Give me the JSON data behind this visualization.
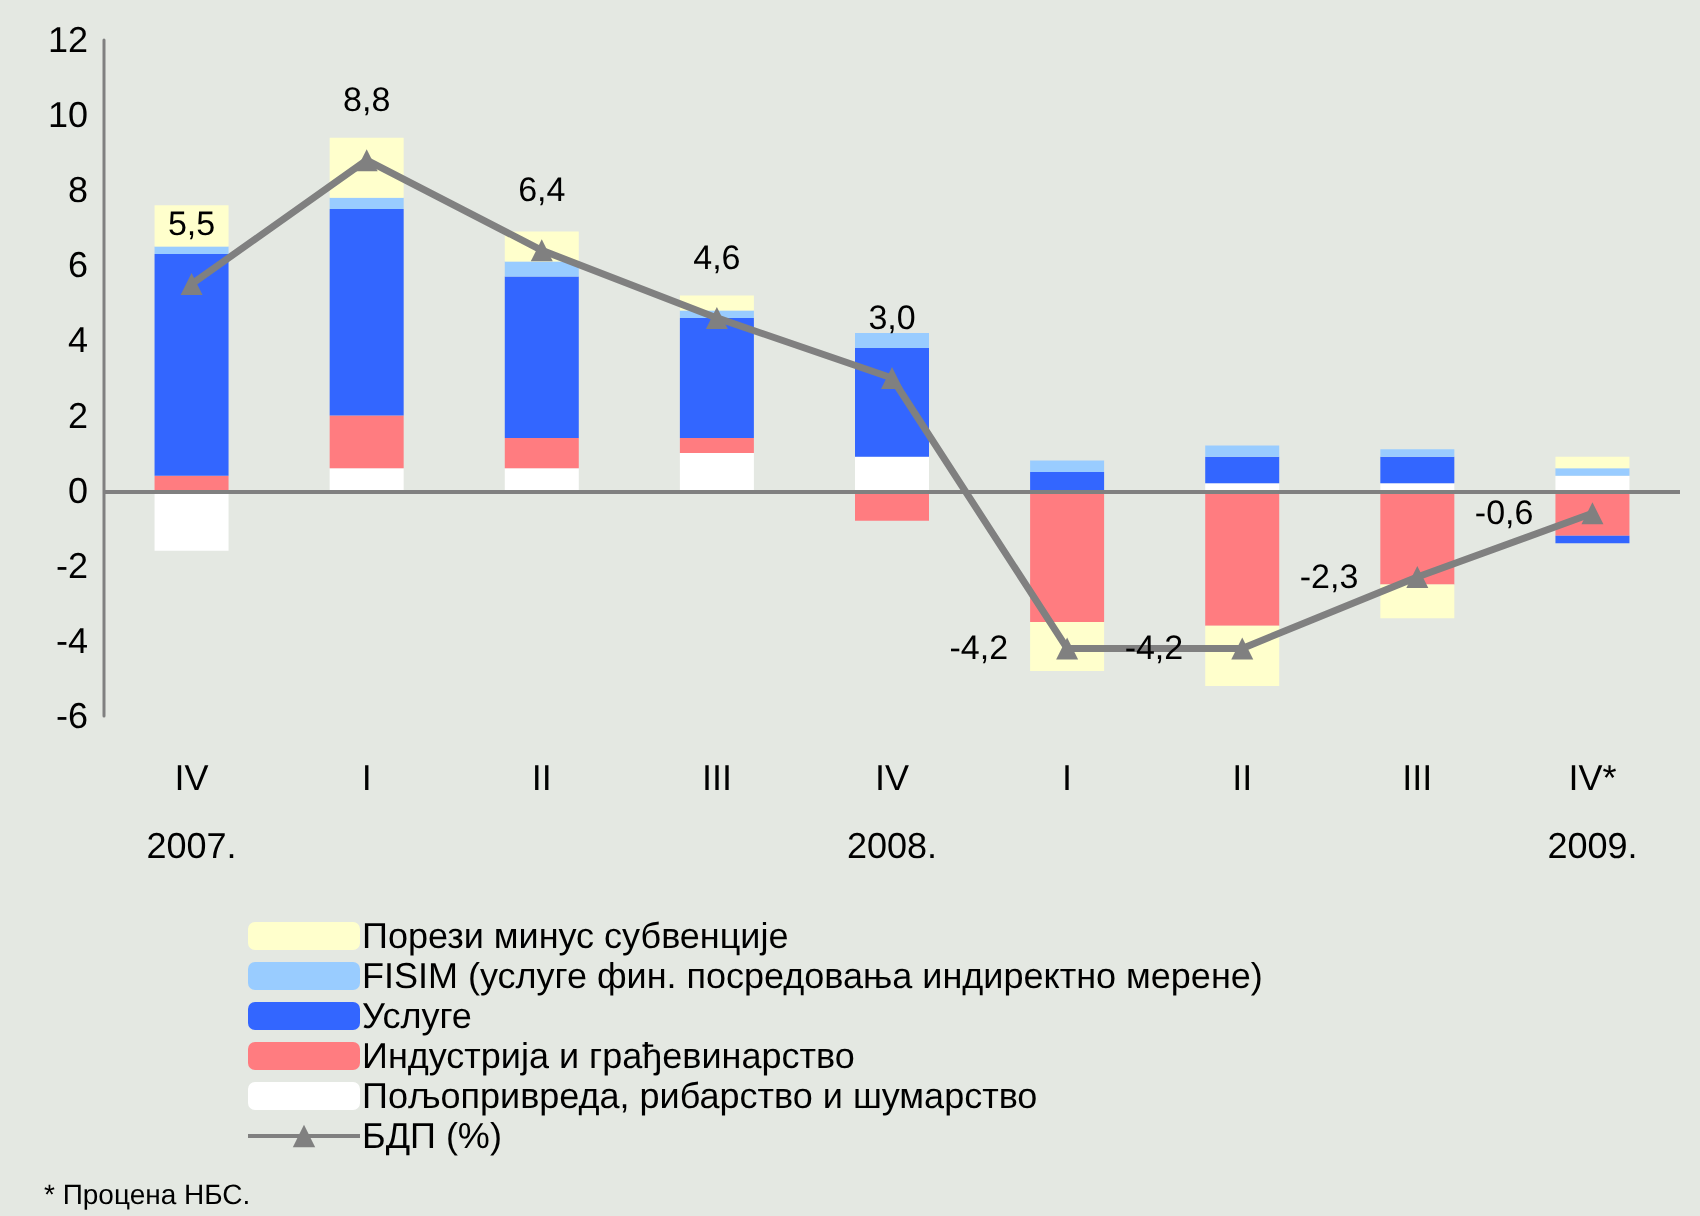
{
  "chart_data": {
    "type": "bar",
    "stacked": true,
    "categories": [
      "IV\n2007.",
      "I",
      "II",
      "III",
      "IV\n2008.",
      "I",
      "II",
      "III",
      "IV*\n2009."
    ],
    "series": [
      {
        "name": "Пољопривреда, рибарство и шумарство",
        "color": "#ffffff",
        "values": [
          -1.6,
          0.6,
          0.6,
          1.0,
          0.9,
          0.0,
          0.2,
          0.2,
          0.4
        ]
      },
      {
        "name": "Индустрија и грађевинарство",
        "color": "#ff7c80",
        "values": [
          0.4,
          1.4,
          0.8,
          0.4,
          -0.8,
          -3.5,
          -3.6,
          -2.5,
          -1.2
        ]
      },
      {
        "name": "Услуге",
        "color": "#3366ff",
        "values": [
          5.9,
          5.5,
          4.3,
          3.2,
          2.9,
          0.5,
          0.7,
          0.7,
          -0.2
        ]
      },
      {
        "name": "FISIM (услуге фин. посредовања индиректно мерене)",
        "color": "#99ccff",
        "values": [
          0.2,
          0.3,
          0.4,
          0.2,
          0.4,
          0.3,
          0.3,
          0.2,
          0.2
        ]
      },
      {
        "name": "Порези минус субвенције",
        "color": "#ffffcc",
        "values": [
          1.1,
          1.6,
          0.8,
          0.4,
          null,
          -1.3,
          -1.6,
          -0.9,
          0.3
        ]
      },
      {
        "name": "БДП (%)",
        "type": "line",
        "color": "#808080",
        "marker": "triangle",
        "values": [
          5.5,
          8.8,
          6.4,
          4.6,
          3.0,
          -4.2,
          -4.2,
          -2.3,
          -0.6
        ],
        "value_labels": [
          "5,5",
          "8,8",
          "6,4",
          "4,6",
          "3,0",
          "-4,2",
          "-4,2",
          "-2,3",
          "-0,6"
        ]
      }
    ],
    "ylim": [
      -6,
      12
    ],
    "yticks": [
      -6,
      -4,
      -2,
      0,
      2,
      4,
      6,
      8,
      10,
      12
    ],
    "grid": false,
    "legend": "bottom left",
    "ref_lines": [
      {
        "axis": "y",
        "value": 0,
        "color": "#808080"
      }
    ],
    "annotations": [
      "* Процена НБС."
    ]
  }
}
